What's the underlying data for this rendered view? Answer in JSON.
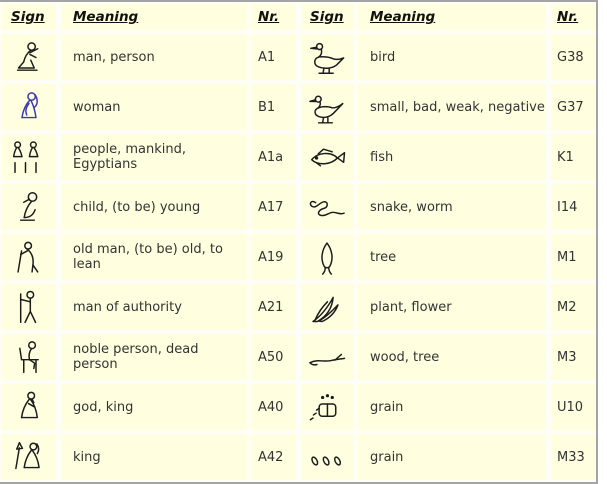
{
  "colors": {
    "cell_bg": "#ffffe0",
    "gap_bg": "#fffef6",
    "border": "#a4a4a4",
    "text": "#333333",
    "header_text": "#111111",
    "glyph": "#1c1c1c",
    "woman_glyph": "#3a3aae"
  },
  "headers": {
    "sign": "Sign",
    "meaning": "Meaning",
    "nr": "Nr."
  },
  "left_rows": [
    {
      "glyph": "seated-man",
      "glyph_label": "seated man",
      "meaning": "man, person",
      "nr": "A1"
    },
    {
      "glyph": "seated-woman",
      "glyph_label": "seated woman",
      "meaning": "woman",
      "nr": "B1"
    },
    {
      "glyph": "people-group",
      "glyph_label": "group of people with plural strokes",
      "meaning": "people, mankind, Egyptians",
      "nr": "A1a"
    },
    {
      "glyph": "child",
      "glyph_label": "child with hand to mouth",
      "meaning": "child, (to be) young",
      "nr": "A17"
    },
    {
      "glyph": "old-man-staff",
      "glyph_label": "old man leaning on staff",
      "meaning": "old man, (to be) old, to lean",
      "nr": "A19"
    },
    {
      "glyph": "man-staff",
      "glyph_label": "man holding staff",
      "meaning": "man of authority",
      "nr": "A21"
    },
    {
      "glyph": "noble-chair",
      "glyph_label": "noble seated on chair",
      "meaning": "noble person, dead person",
      "nr": "A50"
    },
    {
      "glyph": "seated-god",
      "glyph_label": "seated god with beard",
      "meaning": "god, king",
      "nr": "A40"
    },
    {
      "glyph": "king-uraeus",
      "glyph_label": "seated king with uraeus",
      "meaning": "king",
      "nr": "A42"
    }
  ],
  "right_rows": [
    {
      "glyph": "duck",
      "glyph_label": "duck",
      "meaning": "bird",
      "nr": "G38"
    },
    {
      "glyph": "sparrow",
      "glyph_label": "sparrow",
      "meaning": "small, bad, weak, negative",
      "nr": "G37"
    },
    {
      "glyph": "fish",
      "glyph_label": "tilapia fish",
      "meaning": "fish",
      "nr": "K1"
    },
    {
      "glyph": "snake",
      "glyph_label": "wavy snake",
      "meaning": "snake, worm",
      "nr": "I14"
    },
    {
      "glyph": "tree",
      "glyph_label": "tree",
      "meaning": "tree",
      "nr": "M1"
    },
    {
      "glyph": "plant",
      "glyph_label": "plant with leaves",
      "meaning": "plant, flower",
      "nr": "M2"
    },
    {
      "glyph": "branch",
      "glyph_label": "wood branch",
      "meaning": "wood, tree",
      "nr": "M3"
    },
    {
      "glyph": "grain-measure",
      "glyph_label": "grain measure with dots",
      "meaning": "grain",
      "nr": "U10"
    },
    {
      "glyph": "three-grains",
      "glyph_label": "three grains",
      "meaning": "grain",
      "nr": "M33"
    }
  ]
}
